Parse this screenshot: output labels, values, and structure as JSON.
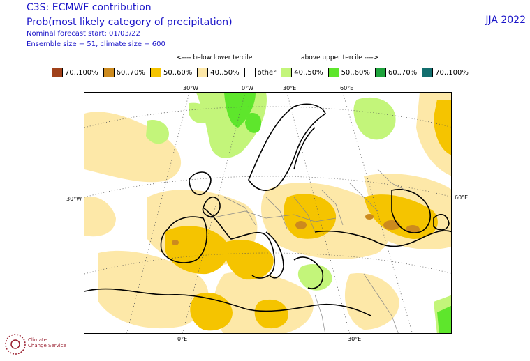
{
  "header": {
    "title": "C3S: ECMWF contribution",
    "subtitle": "Prob(most likely category of precipitation)",
    "forecast_start": "Nominal forecast start: 01/03/22",
    "ensemble": "Ensemble size = 51, climate size = 600",
    "season": "JJA 2022"
  },
  "legend": {
    "below_label": "<---- below lower tercile",
    "above_label": "above upper tercile ---->",
    "items": [
      {
        "label": "70..100%",
        "color": "#a0411a"
      },
      {
        "label": "60..70%",
        "color": "#cc8a1e"
      },
      {
        "label": "50..60%",
        "color": "#f5c400"
      },
      {
        "label": "40..50%",
        "color": "#fde8a8"
      },
      {
        "label": "other",
        "color": "#ffffff"
      },
      {
        "label": "40..50%",
        "color": "#c3f57a"
      },
      {
        "label": "50..60%",
        "color": "#5ee62c"
      },
      {
        "label": "60..70%",
        "color": "#1ea33c"
      },
      {
        "label": "70..100%",
        "color": "#126e6e"
      }
    ]
  },
  "map": {
    "top_longitudes": [
      "30°W",
      "0°W",
      "30°E",
      "60°E"
    ],
    "bottom_longitudes": [
      "0°E",
      "30°E"
    ],
    "left_latitude": "30°W",
    "right_latitude": "60°E"
  },
  "logo": {
    "line1": "Climate",
    "line2": "Change Service"
  }
}
